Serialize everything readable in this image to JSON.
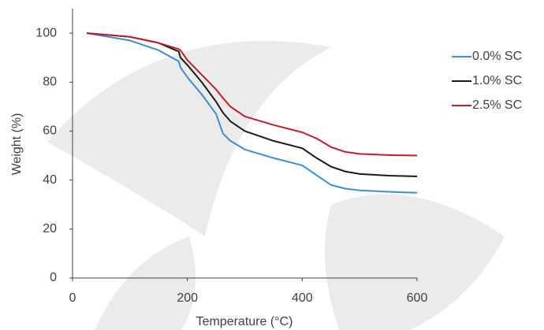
{
  "chart_data": {
    "type": "line",
    "x_label": "Temperature (°C)",
    "y_label": "Weight (%)",
    "x": [
      25,
      100,
      150,
      185,
      188,
      200,
      225,
      250,
      262,
      275,
      300,
      350,
      400,
      425,
      450,
      475,
      500,
      550,
      600
    ],
    "series": [
      {
        "name": "0.0% SC",
        "color": "#3a8fd0",
        "values": [
          100,
          97,
          93,
          88.5,
          86,
          82,
          75,
          67,
          59,
          56,
          52.5,
          49,
          46,
          42,
          38,
          36.5,
          35.8,
          35.2,
          34.8
        ]
      },
      {
        "name": "1.0% SC",
        "color": "#1a1a1a",
        "values": [
          100,
          98.5,
          96,
          92.5,
          90,
          87,
          80,
          72,
          67.5,
          64,
          60,
          56,
          53,
          49,
          45.5,
          43.5,
          42.5,
          41.8,
          41.5
        ]
      },
      {
        "name": "2.5% SC",
        "color": "#c0202a",
        "values": [
          100,
          98.5,
          96,
          93.5,
          93,
          89,
          83,
          77,
          73.5,
          70,
          66,
          62.5,
          59.5,
          57,
          53.5,
          51.5,
          50.7,
          50.2,
          50
        ]
      }
    ],
    "xlim": [
      0,
      600
    ],
    "xticks": [
      0,
      200,
      400,
      600
    ],
    "ylim": [
      0,
      110
    ],
    "yticks": [
      0,
      20,
      40,
      60,
      80,
      100
    ],
    "grid": false,
    "legend": "right"
  }
}
